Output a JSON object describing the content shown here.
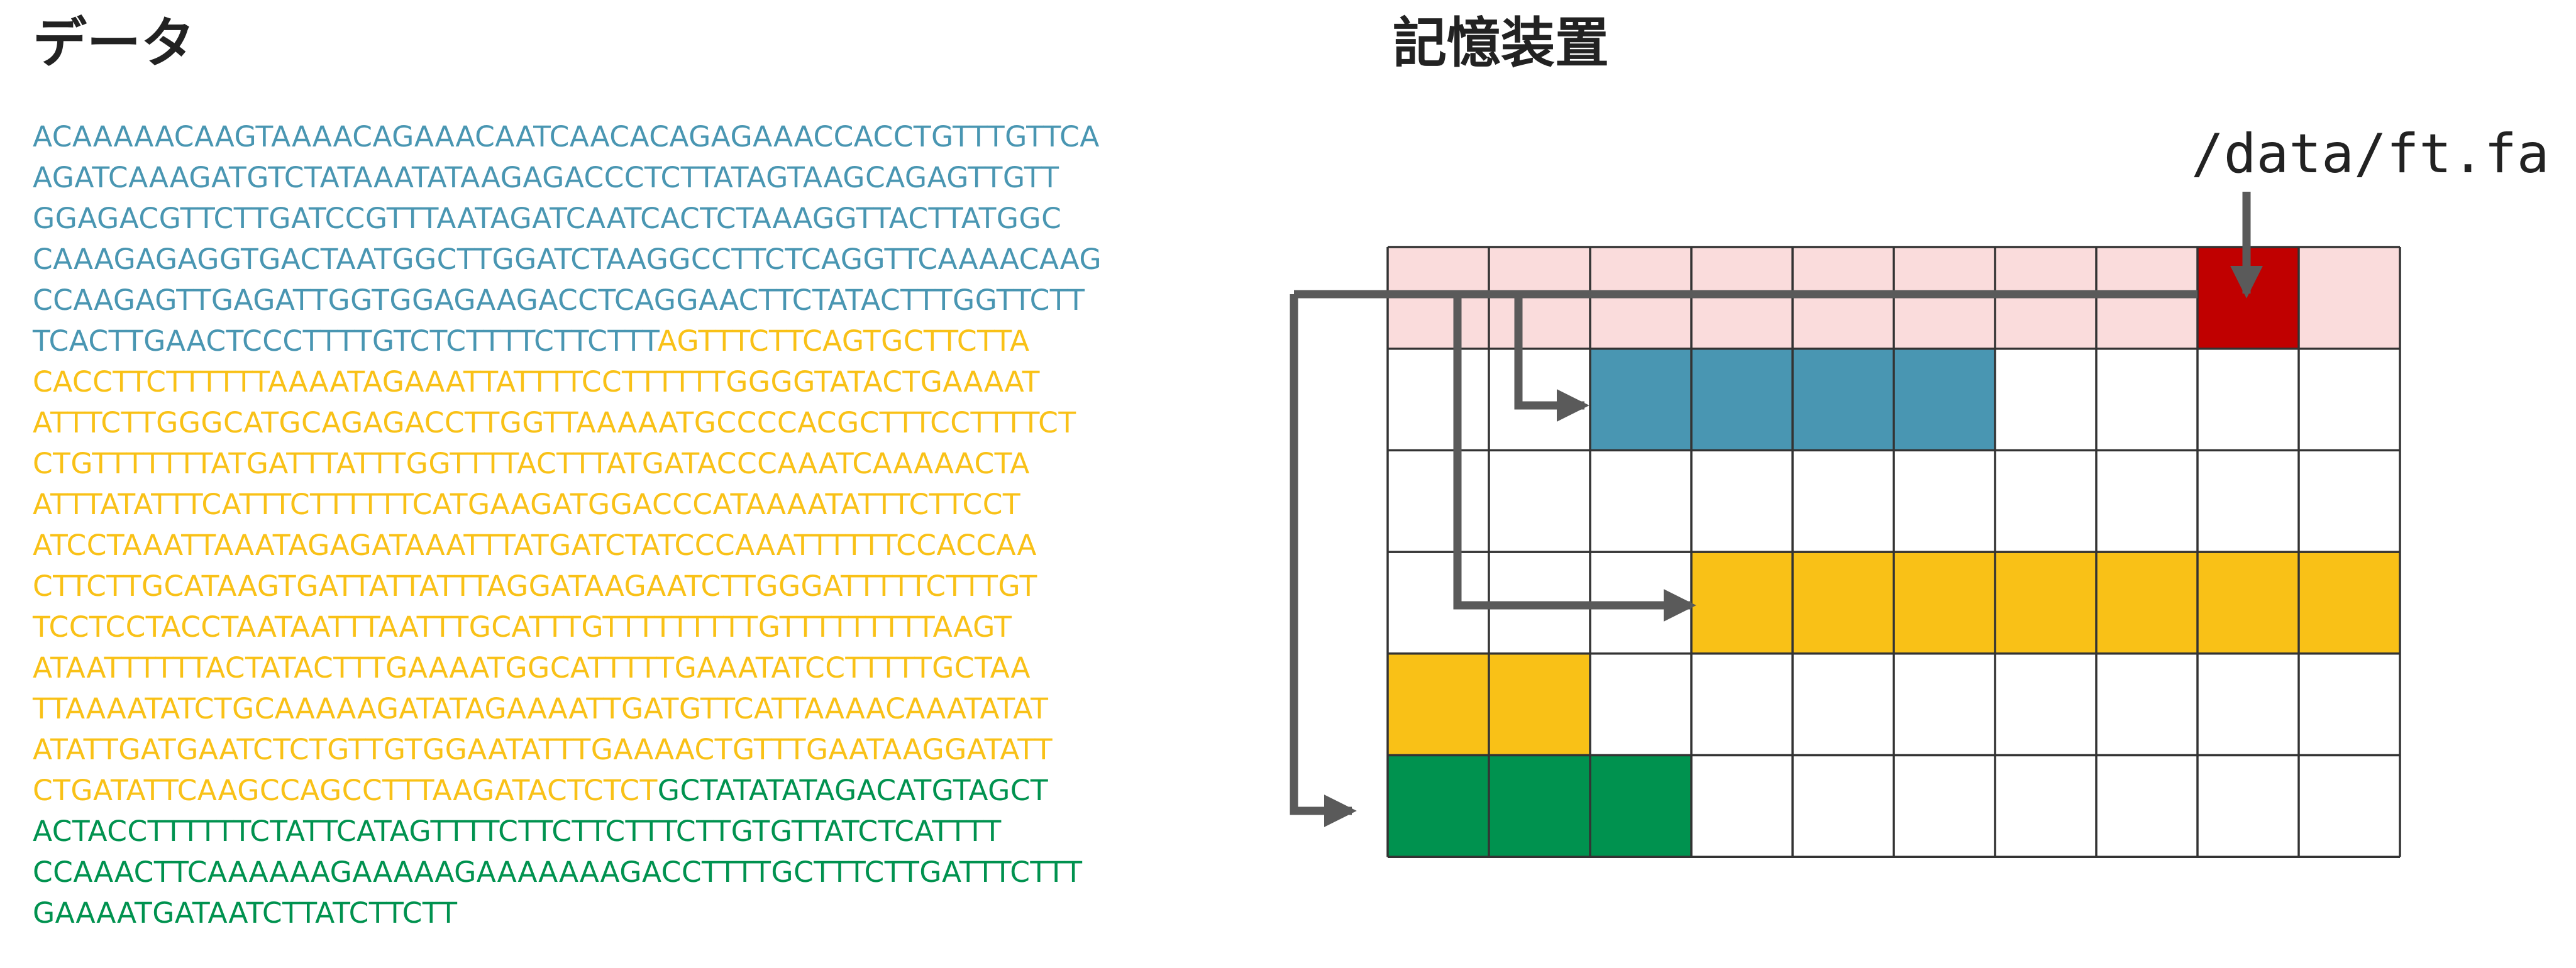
{
  "headings": {
    "data": "データ",
    "storage": "記憶装置"
  },
  "file_path": "/data/ft.fa",
  "colors": {
    "file_blue": "#4996B2",
    "file_yellow": "#F9C117",
    "file_green": "#00924F",
    "directory_red": "#C00000",
    "directory_pink": "#FADCDC",
    "arrow_gray": "#5A5A5A",
    "grid_line": "#333333"
  },
  "sequence_lines": [
    [
      {
        "text": "ACAAAAACAAGTAAAACAGAAACAATCAACACAGAGAAACCACCTGTTTGTTCA",
        "color": "blue"
      }
    ],
    [
      {
        "text": "AGATCAAAGATGTCTATAAATATAAGAGACCCTCTTATAGTAAGCAGAGTTGTT",
        "color": "blue"
      }
    ],
    [
      {
        "text": "GGAGACGTTCTTGATCCGTTTAATAGATCAATCACTCTAAAGGTTACTTATGGC",
        "color": "blue"
      }
    ],
    [
      {
        "text": "CAAAGAGAGGTGACTAATGGCTTGGATCTAAGGCCTTCTCAGGTTCAAAACAAG",
        "color": "blue"
      }
    ],
    [
      {
        "text": "CCAAGAGTTGAGATTGGTGGAGAAGACCTCAGGAACTTCTATACTTTGGTTCTT",
        "color": "blue"
      }
    ],
    [
      {
        "text": "TCACTTGAACTCCCTTTTGTCTCTTTTCTTCTTT",
        "color": "blue"
      },
      {
        "text": "AGTTTCTTCAGTGCTTCTTA",
        "color": "yellow"
      }
    ],
    [
      {
        "text": "CACCTTCTTTTTTAAAATAGAAATTATTTTCCTTTTTTGGGGTATACTGAAAAT",
        "color": "yellow"
      }
    ],
    [
      {
        "text": "ATTTCTTGGGCATGCAGAGACCTTGGTTAAAAATGCCCCACGCTTTCCTTTTCT",
        "color": "yellow"
      }
    ],
    [
      {
        "text": "CTGTTTTTTTATGATTTATTTGGTTTTACTTTATGATACCCAAATCAAAAACTA",
        "color": "yellow"
      }
    ],
    [
      {
        "text": "ATTTATATTTCATTTCTTTTTTCATGAAGATGGACCCATAAAATATTTCTTCCT",
        "color": "yellow"
      }
    ],
    [
      {
        "text": "ATCCTAAATTAAATAGAGATAAATTTATGATCTATCCCAAATTTTTTCCACCAA",
        "color": "yellow"
      }
    ],
    [
      {
        "text": "CTTCTTGCATAAGTGATTATTATTTAGGATAAGAATCTTGGGATTTTTCTTTGT",
        "color": "yellow"
      }
    ],
    [
      {
        "text": "TCCTCCTACCTAATAATTTAATTTGCATTTGTTTTTTTTTGTTTTTTTTTAAGT",
        "color": "yellow"
      }
    ],
    [
      {
        "text": "ATAATTTTTTACTATACTTTGAAAATGGCATTTTTGAAATATCCTTTTTGCTAA",
        "color": "yellow"
      }
    ],
    [
      {
        "text": "TTAAAATATCTGCAAAAAGATATAGAAAATTGATGTTCATTAAAACAAATATAT",
        "color": "yellow"
      }
    ],
    [
      {
        "text": "ATATTGATGAATCTCTGTTGTGGAATATTTGAAAACTGTTTGAATAAGGATATT",
        "color": "yellow"
      }
    ],
    [
      {
        "text": "CTGATATTCAAGCCAGCCTTTAAGATACTCTCT",
        "color": "yellow"
      },
      {
        "text": "GCTATATATAGACATGTAGCT",
        "color": "green"
      }
    ],
    [
      {
        "text": "ACTACCTTTTTTCTATTCATAGTTTTCTTCTTCTTTCTTGTGTTATCTCATTTT",
        "color": "green"
      }
    ],
    [
      {
        "text": "CCAAACTTCAAAAAAGAAAAAGAAAAAAAGACCTTTTGCTTTCTTGATTTCTTT",
        "color": "green"
      }
    ],
    [
      {
        "text": "GAAAATGATAATCTTATCTTCTT",
        "color": "green"
      }
    ]
  ],
  "storage_grid": {
    "rows": [
      [
        "pink",
        "pink",
        "pink",
        "pink",
        "pink",
        "pink",
        "pink",
        "pink",
        "red",
        "pink"
      ],
      [
        "empty",
        "empty",
        "blue",
        "blue",
        "blue",
        "blue",
        "empty",
        "empty",
        "empty",
        "empty"
      ],
      [
        "empty",
        "empty",
        "empty",
        "empty",
        "empty",
        "empty",
        "empty",
        "empty",
        "empty",
        "empty"
      ],
      [
        "empty",
        "empty",
        "empty",
        "yellow",
        "yellow",
        "yellow",
        "yellow",
        "yellow",
        "yellow",
        "yellow"
      ],
      [
        "yellow",
        "yellow",
        "empty",
        "empty",
        "empty",
        "empty",
        "empty",
        "empty",
        "empty",
        "empty"
      ],
      [
        "green",
        "green",
        "green",
        "empty",
        "empty",
        "empty",
        "empty",
        "empty",
        "empty",
        "empty"
      ]
    ]
  }
}
